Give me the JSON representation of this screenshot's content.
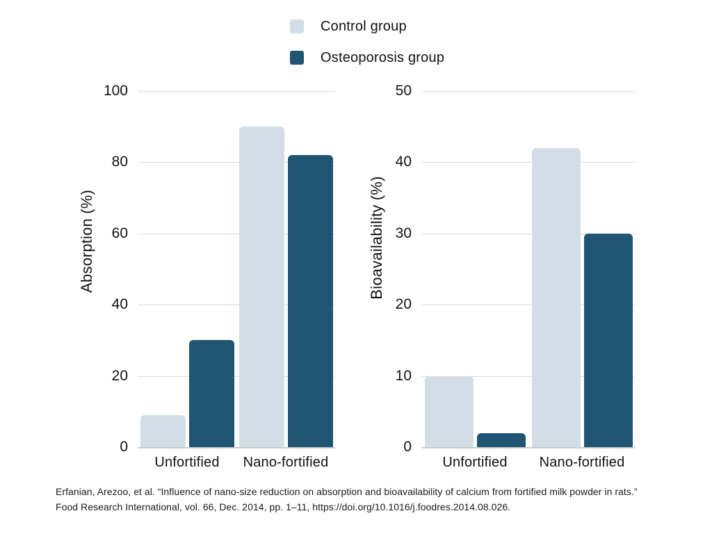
{
  "legend": {
    "position": "top-center",
    "items": [
      {
        "label": "Control group",
        "color": "#d2dee6"
      },
      {
        "label": "Osteoporosis group",
        "color": "#1f5472"
      }
    ]
  },
  "chart_data": [
    {
      "type": "bar",
      "title": "",
      "xlabel": "",
      "ylabel": "Absorption (%)",
      "ylim": [
        0,
        100
      ],
      "yticks": [
        0,
        20,
        40,
        60,
        80,
        100
      ],
      "grid": true,
      "categories": [
        "Unfortified",
        "Nano-fortified"
      ],
      "series": [
        {
          "name": "Control group",
          "color": "#d2dee6",
          "values": [
            9,
            90
          ]
        },
        {
          "name": "Osteoporosis group",
          "color": "#1f5472",
          "values": [
            30,
            82
          ]
        }
      ]
    },
    {
      "type": "bar",
      "title": "",
      "xlabel": "",
      "ylabel": "Bioavailability (%)",
      "ylim": [
        0,
        50
      ],
      "yticks": [
        0,
        10,
        20,
        30,
        40,
        50
      ],
      "grid": true,
      "categories": [
        "Unfortified",
        "Nano-fortified"
      ],
      "series": [
        {
          "name": "Control group",
          "color": "#d2dee6",
          "values": [
            10,
            42
          ]
        },
        {
          "name": "Osteoporosis group",
          "color": "#1f5472",
          "values": [
            2,
            30
          ]
        }
      ]
    }
  ],
  "citation": {
    "line1": "Erfanian, Arezoo, et al. “Influence of nano-size reduction on absorption and bioavailability of calcium from fortified milk powder in rats.”",
    "line2": "Food Research International, vol. 66, Dec. 2014, pp. 1–11, https://doi.org/10.1016/j.foodres.2014.08.026."
  }
}
